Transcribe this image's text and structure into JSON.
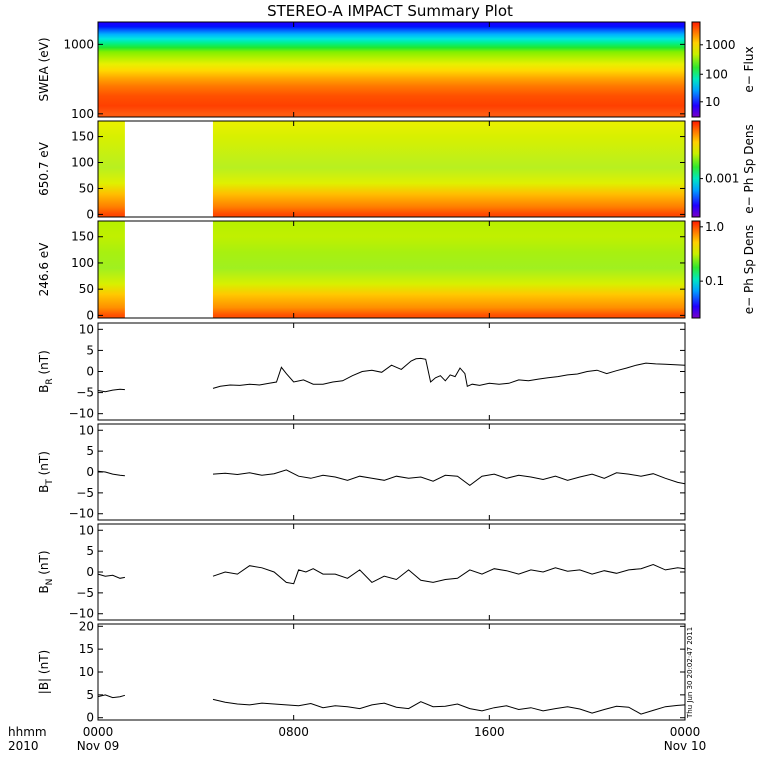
{
  "figure": {
    "title": "STEREO-A IMPACT Summary Plot",
    "timestamp": "Thu Jun 30 20:02:47 2011",
    "time_format_label": "hhmm",
    "year_label": "2010",
    "colors": {
      "background": "#ffffff",
      "axes": "#000000",
      "trace": "#000000",
      "gap": "#ffffff"
    }
  },
  "chart_data": [
    {
      "id": "swea",
      "type": "heatmap",
      "ylabel": "SWEA (eV)",
      "yscale": "log",
      "ylim": [
        90,
        2100
      ],
      "yticks": [
        100,
        1000
      ],
      "ytick_labels": [
        "100",
        "1000"
      ],
      "colorbar": {
        "label": "e− Flux",
        "scale": "log",
        "tick_labels": [
          "10",
          "100",
          "1000"
        ],
        "tick_values": [
          10,
          100,
          1000
        ]
      },
      "bands": [
        {
          "energy": 2000,
          "color": "#1800ff"
        },
        {
          "energy": 1800,
          "color": "#0010ff"
        },
        {
          "energy": 1600,
          "color": "#0060ff"
        },
        {
          "energy": 1400,
          "color": "#00b0ff"
        },
        {
          "energy": 1200,
          "color": "#00e8e0"
        },
        {
          "energy": 1050,
          "color": "#00f090"
        },
        {
          "energy": 900,
          "color": "#20e830"
        },
        {
          "energy": 780,
          "color": "#80f000"
        },
        {
          "energy": 650,
          "color": "#b0f000"
        },
        {
          "energy": 520,
          "color": "#e8f000"
        },
        {
          "energy": 420,
          "color": "#ffd800"
        },
        {
          "energy": 330,
          "color": "#ffa800"
        },
        {
          "energy": 250,
          "color": "#ff7800"
        },
        {
          "energy": 180,
          "color": "#ff5000"
        },
        {
          "energy": 130,
          "color": "#ff4000"
        },
        {
          "energy": 100,
          "color": "#ff5a10"
        }
      ]
    },
    {
      "id": "pad_650",
      "type": "heatmap",
      "ylabel": "650.7 eV",
      "ylim": [
        -5,
        180
      ],
      "yticks": [
        0,
        50,
        100,
        150
      ],
      "ytick_labels": [
        "0",
        "50",
        "100",
        "150"
      ],
      "data_gaps_hours": [
        [
          1.1,
          4.7
        ]
      ],
      "colorbar": {
        "label": "e− Ph Sp Dens",
        "tick_labels": [
          "0.001"
        ],
        "tick_values": [
          0.001
        ]
      },
      "mean_profile": [
        {
          "pitch_angle": 175,
          "color": "#e8f000"
        },
        {
          "pitch_angle": 150,
          "color": "#d8f000"
        },
        {
          "pitch_angle": 120,
          "color": "#c8f010"
        },
        {
          "pitch_angle": 90,
          "color": "#b8f020"
        },
        {
          "pitch_angle": 60,
          "color": "#e0f000"
        },
        {
          "pitch_angle": 40,
          "color": "#ffc000"
        },
        {
          "pitch_angle": 15,
          "color": "#ff8000"
        },
        {
          "pitch_angle": 0,
          "color": "#ff4800"
        }
      ]
    },
    {
      "id": "pad_246",
      "type": "heatmap",
      "ylabel": "246.6 eV",
      "ylim": [
        -5,
        180
      ],
      "yticks": [
        0,
        50,
        100,
        150
      ],
      "ytick_labels": [
        "0",
        "50",
        "100",
        "150"
      ],
      "data_gaps_hours": [
        [
          1.1,
          4.7
        ]
      ],
      "colorbar": {
        "label": "e− Ph Sp Dens",
        "tick_labels": [
          "1.0",
          "0.1"
        ],
        "tick_values": [
          1.0,
          0.1
        ]
      },
      "mean_profile": [
        {
          "pitch_angle": 175,
          "color": "#b8f000"
        },
        {
          "pitch_angle": 150,
          "color": "#c0f000"
        },
        {
          "pitch_angle": 120,
          "color": "#a8f010"
        },
        {
          "pitch_angle": 90,
          "color": "#a0f020"
        },
        {
          "pitch_angle": 60,
          "color": "#d8f000"
        },
        {
          "pitch_angle": 40,
          "color": "#ffc800"
        },
        {
          "pitch_angle": 15,
          "color": "#ff9000"
        },
        {
          "pitch_angle": 0,
          "color": "#ff5000"
        }
      ]
    },
    {
      "id": "br",
      "type": "line",
      "ylabel": "B",
      "ylabel_sub": "R",
      "ylabel_unit": "(nT)",
      "ylim": [
        -11.5,
        11.5
      ],
      "yticks": [
        -10,
        -5,
        0,
        5,
        10
      ],
      "ytick_labels": [
        "−10",
        "−5",
        "0",
        "5",
        "10"
      ],
      "segments": [
        {
          "x": [
            0.0,
            0.3,
            0.6,
            0.9,
            1.1
          ],
          "y": [
            -4.5,
            -4.8,
            -4.4,
            -4.2,
            -4.3
          ]
        },
        {
          "x": [
            4.7,
            5.0,
            5.4,
            5.8,
            6.2,
            6.6,
            7.0,
            7.3,
            7.5,
            7.7,
            8.0,
            8.4,
            8.8,
            9.2,
            9.6,
            10.0,
            10.4,
            10.8,
            11.2,
            11.6,
            12.0,
            12.4,
            12.8,
            13.0,
            13.2,
            13.4,
            13.6,
            13.8,
            14.0,
            14.2,
            14.4,
            14.6,
            14.8,
            15.0,
            15.1,
            15.3,
            15.6,
            16.0,
            16.4,
            16.8,
            17.2,
            17.6,
            18.0,
            18.4,
            18.8,
            19.2,
            19.6,
            20.0,
            20.4,
            20.8,
            21.2,
            21.6,
            22.0,
            22.4,
            22.8,
            23.2,
            23.6,
            24.0
          ],
          "y": [
            -4.0,
            -3.5,
            -3.2,
            -3.3,
            -3.0,
            -3.2,
            -2.8,
            -2.5,
            1.0,
            -0.5,
            -2.5,
            -2.0,
            -3.0,
            -3.0,
            -2.5,
            -2.2,
            -1.0,
            0.0,
            0.3,
            -0.2,
            1.5,
            0.5,
            2.5,
            3.0,
            3.1,
            2.9,
            -2.5,
            -1.5,
            -1.0,
            -2.2,
            -0.8,
            -1.2,
            0.8,
            -0.5,
            -3.5,
            -3.0,
            -3.3,
            -2.8,
            -3.0,
            -2.8,
            -2.0,
            -2.2,
            -1.8,
            -1.5,
            -1.2,
            -0.8,
            -0.6,
            0.0,
            0.3,
            -0.5,
            0.2,
            0.8,
            1.5,
            2.0,
            1.8,
            1.7,
            1.6,
            1.5
          ]
        }
      ]
    },
    {
      "id": "bt",
      "type": "line",
      "ylabel": "B",
      "ylabel_sub": "T",
      "ylabel_unit": "(nT)",
      "ylim": [
        -11.5,
        11.5
      ],
      "yticks": [
        -10,
        -5,
        0,
        5,
        10
      ],
      "ytick_labels": [
        "−10",
        "−5",
        "0",
        "5",
        "10"
      ],
      "segments": [
        {
          "x": [
            0.0,
            0.3,
            0.6,
            0.9,
            1.1
          ],
          "y": [
            0.2,
            0.0,
            -0.5,
            -0.8,
            -0.9
          ]
        },
        {
          "x": [
            4.7,
            5.2,
            5.7,
            6.2,
            6.7,
            7.2,
            7.7,
            8.2,
            8.7,
            9.2,
            9.7,
            10.2,
            10.7,
            11.2,
            11.7,
            12.2,
            12.7,
            13.2,
            13.7,
            14.2,
            14.7,
            15.2,
            15.7,
            16.2,
            16.7,
            17.2,
            17.7,
            18.2,
            18.7,
            19.2,
            19.7,
            20.2,
            20.7,
            21.2,
            21.7,
            22.2,
            22.7,
            23.2,
            23.7,
            24.0
          ],
          "y": [
            -0.5,
            -0.3,
            -0.6,
            -0.2,
            -0.8,
            -0.4,
            0.5,
            -1.0,
            -1.5,
            -0.8,
            -1.2,
            -2.0,
            -1.0,
            -1.5,
            -2.0,
            -1.0,
            -1.5,
            -1.2,
            -2.2,
            -0.8,
            -1.0,
            -3.2,
            -1.0,
            -0.5,
            -1.5,
            -0.8,
            -1.2,
            -1.8,
            -1.0,
            -2.0,
            -1.2,
            -0.5,
            -1.5,
            -0.2,
            -0.5,
            -1.0,
            -0.4,
            -1.5,
            -2.5,
            -2.8
          ]
        }
      ]
    },
    {
      "id": "bn",
      "type": "line",
      "ylabel": "B",
      "ylabel_sub": "N",
      "ylabel_unit": "(nT)",
      "ylim": [
        -11.5,
        11.5
      ],
      "yticks": [
        -10,
        -5,
        0,
        5,
        10
      ],
      "ytick_labels": [
        "−10",
        "−5",
        "0",
        "5",
        "10"
      ],
      "segments": [
        {
          "x": [
            0.0,
            0.3,
            0.6,
            0.9,
            1.1
          ],
          "y": [
            -0.5,
            -1.0,
            -0.8,
            -1.5,
            -1.3
          ]
        },
        {
          "x": [
            4.7,
            5.2,
            5.7,
            6.2,
            6.7,
            7.2,
            7.7,
            8.0,
            8.2,
            8.5,
            8.8,
            9.2,
            9.7,
            10.2,
            10.7,
            11.2,
            11.7,
            12.2,
            12.7,
            13.2,
            13.7,
            14.2,
            14.7,
            15.2,
            15.7,
            16.2,
            16.7,
            17.2,
            17.7,
            18.2,
            18.7,
            19.2,
            19.7,
            20.2,
            20.7,
            21.2,
            21.7,
            22.2,
            22.7,
            23.2,
            23.7,
            24.0
          ],
          "y": [
            -1.0,
            0.0,
            -0.5,
            1.5,
            1.0,
            0.0,
            -2.5,
            -2.8,
            0.5,
            0.0,
            0.8,
            -0.5,
            -0.5,
            -1.5,
            0.5,
            -2.5,
            -1.0,
            -1.8,
            0.5,
            -2.0,
            -2.5,
            -1.8,
            -1.5,
            0.5,
            -0.5,
            0.8,
            0.3,
            -0.5,
            0.5,
            0.0,
            1.0,
            0.2,
            0.5,
            -0.5,
            0.3,
            -0.3,
            0.5,
            0.8,
            1.8,
            0.5,
            1.0,
            0.8
          ]
        }
      ]
    },
    {
      "id": "bmag",
      "type": "line",
      "ylabel": "|B| (nT)",
      "ylim": [
        -0.5,
        20.5
      ],
      "yticks": [
        0,
        5,
        10,
        15,
        20
      ],
      "ytick_labels": [
        "0",
        "5",
        "10",
        "15",
        "20"
      ],
      "segments": [
        {
          "x": [
            0.0,
            0.3,
            0.6,
            0.9,
            1.1
          ],
          "y": [
            4.6,
            5.0,
            4.4,
            4.6,
            4.9
          ]
        },
        {
          "x": [
            4.7,
            5.2,
            5.7,
            6.2,
            6.7,
            7.2,
            7.7,
            8.2,
            8.7,
            9.2,
            9.7,
            10.2,
            10.7,
            11.2,
            11.7,
            12.2,
            12.7,
            13.2,
            13.7,
            14.2,
            14.7,
            15.2,
            15.7,
            16.2,
            16.7,
            17.2,
            17.7,
            18.2,
            18.7,
            19.2,
            19.7,
            20.2,
            20.7,
            21.2,
            21.7,
            22.2,
            22.7,
            23.2,
            23.7,
            24.0
          ],
          "y": [
            4.0,
            3.4,
            3.0,
            2.8,
            3.2,
            3.0,
            2.8,
            2.6,
            3.1,
            2.2,
            2.6,
            2.4,
            2.0,
            2.8,
            3.2,
            2.3,
            2.0,
            3.5,
            2.4,
            2.5,
            3.0,
            2.0,
            1.5,
            2.2,
            2.6,
            1.8,
            2.2,
            1.5,
            2.0,
            2.4,
            1.9,
            1.0,
            1.8,
            2.5,
            2.3,
            0.8,
            1.6,
            2.4,
            2.7,
            2.8
          ]
        }
      ]
    }
  ],
  "xaxis": {
    "range_hours": [
      0,
      24
    ],
    "ticks": [
      {
        "hour": 0,
        "label": "0000",
        "date": "Nov 09"
      },
      {
        "hour": 8,
        "label": "0800",
        "date": ""
      },
      {
        "hour": 16,
        "label": "1600",
        "date": ""
      },
      {
        "hour": 24,
        "label": "0000",
        "date": "Nov 10"
      }
    ]
  }
}
